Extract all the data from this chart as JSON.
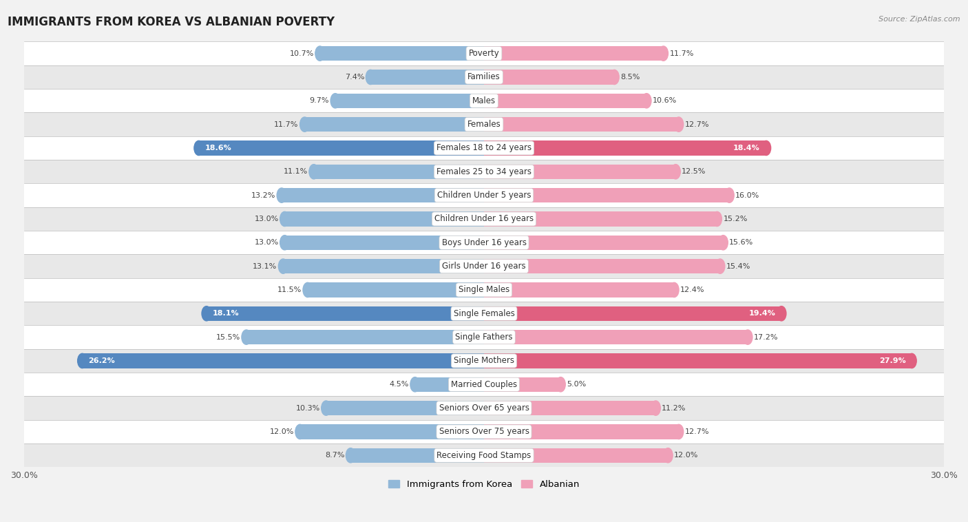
{
  "title": "IMMIGRANTS FROM KOREA VS ALBANIAN POVERTY",
  "source": "Source: ZipAtlas.com",
  "categories": [
    "Poverty",
    "Families",
    "Males",
    "Females",
    "Females 18 to 24 years",
    "Females 25 to 34 years",
    "Children Under 5 years",
    "Children Under 16 years",
    "Boys Under 16 years",
    "Girls Under 16 years",
    "Single Males",
    "Single Females",
    "Single Fathers",
    "Single Mothers",
    "Married Couples",
    "Seniors Over 65 years",
    "Seniors Over 75 years",
    "Receiving Food Stamps"
  ],
  "korea_values": [
    10.7,
    7.4,
    9.7,
    11.7,
    18.6,
    11.1,
    13.2,
    13.0,
    13.0,
    13.1,
    11.5,
    18.1,
    15.5,
    26.2,
    4.5,
    10.3,
    12.0,
    8.7
  ],
  "albanian_values": [
    11.7,
    8.5,
    10.6,
    12.7,
    18.4,
    12.5,
    16.0,
    15.2,
    15.6,
    15.4,
    12.4,
    19.4,
    17.2,
    27.9,
    5.0,
    11.2,
    12.7,
    12.0
  ],
  "korea_color": "#92b8d8",
  "albanian_color": "#f0a0b8",
  "korea_highlight_color": "#5588c0",
  "albanian_highlight_color": "#e06080",
  "highlight_rows": [
    4,
    11,
    13
  ],
  "xlim": 30.0,
  "bar_height": 0.62,
  "background_color": "#f2f2f2",
  "row_bg_colors": [
    "#ffffff",
    "#e8e8e8"
  ],
  "legend_korea": "Immigrants from Korea",
  "legend_albanian": "Albanian"
}
